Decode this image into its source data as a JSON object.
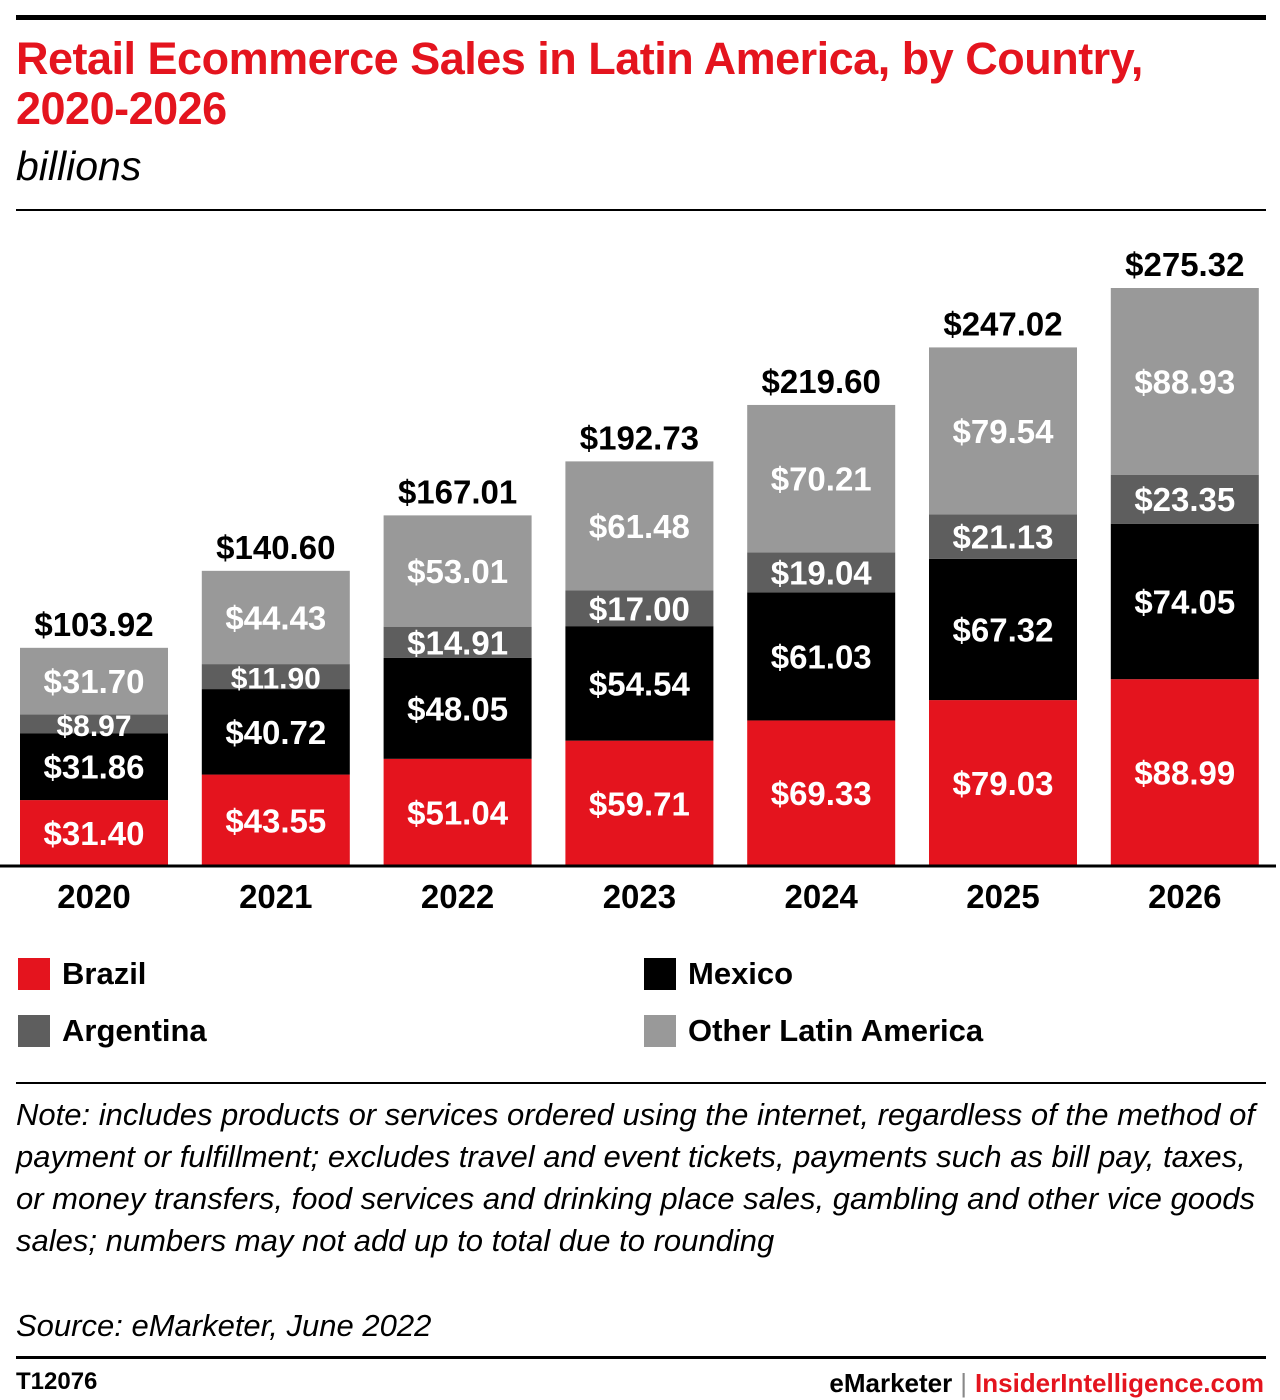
{
  "title": "Retail Ecommerce Sales in Latin America, by Country, 2020-2026",
  "subtitle": "billions",
  "colors": {
    "accent": "#e4141e",
    "brazil": "#e4141e",
    "mexico": "#000000",
    "argentina": "#5e5e5e",
    "other": "#999999"
  },
  "legend": [
    {
      "label": "Brazil",
      "color": "#e4141e"
    },
    {
      "label": "Mexico",
      "color": "#000000"
    },
    {
      "label": "Argentina",
      "color": "#5e5e5e"
    },
    {
      "label": "Other Latin America",
      "color": "#999999"
    }
  ],
  "chart_data": {
    "type": "bar",
    "stacked": true,
    "categories": [
      "2020",
      "2021",
      "2022",
      "2023",
      "2024",
      "2025",
      "2026"
    ],
    "series": [
      {
        "name": "Brazil",
        "color": "#e4141e",
        "label_color": "#ffffff",
        "values": [
          31.4,
          43.55,
          51.04,
          59.71,
          69.33,
          79.03,
          88.99
        ],
        "labels": [
          "$31.40",
          "$43.55",
          "$51.04",
          "$59.71",
          "$69.33",
          "$79.03",
          "$88.99"
        ]
      },
      {
        "name": "Mexico",
        "color": "#000000",
        "label_color": "#ffffff",
        "values": [
          31.86,
          40.72,
          48.05,
          54.54,
          61.03,
          67.32,
          74.05
        ],
        "labels": [
          "$31.86",
          "$40.72",
          "$48.05",
          "$54.54",
          "$61.03",
          "$67.32",
          "$74.05"
        ]
      },
      {
        "name": "Argentina",
        "color": "#5e5e5e",
        "label_color": "#ffffff",
        "values": [
          8.97,
          11.9,
          14.91,
          17.0,
          19.04,
          21.13,
          23.35
        ],
        "labels": [
          "$8.97",
          "$11.90",
          "$14.91",
          "$17.00",
          "$19.04",
          "$21.13",
          "$23.35"
        ]
      },
      {
        "name": "Other Latin America",
        "color": "#999999",
        "label_color": "#ffffff",
        "values": [
          31.7,
          44.43,
          53.01,
          61.48,
          70.21,
          79.54,
          88.93
        ],
        "labels": [
          "$31.70",
          "$44.43",
          "$53.01",
          "$61.48",
          "$70.21",
          "$79.54",
          "$88.93"
        ]
      }
    ],
    "totals": [
      103.92,
      140.6,
      167.01,
      192.73,
      219.6,
      247.02,
      275.32
    ],
    "total_labels": [
      "$103.92",
      "$140.60",
      "$167.01",
      "$192.73",
      "$219.60",
      "$247.02",
      "$275.32"
    ],
    "ylim": [
      0,
      275.32
    ],
    "legend_position": "bottom",
    "grid": false
  },
  "note": "Note: includes products or services ordered using the internet, regardless of the method of payment or fulfillment; excludes travel and event tickets, payments such as bill pay, taxes, or money transfers, food services and drinking place sales, gambling and other vice goods sales; numbers may not add up to total due to rounding",
  "source": "Source: eMarketer, June 2022",
  "footer": {
    "id": "T12076",
    "brand": "eMarketer",
    "separator": "|",
    "brand2": "InsiderIntelligence.com"
  }
}
